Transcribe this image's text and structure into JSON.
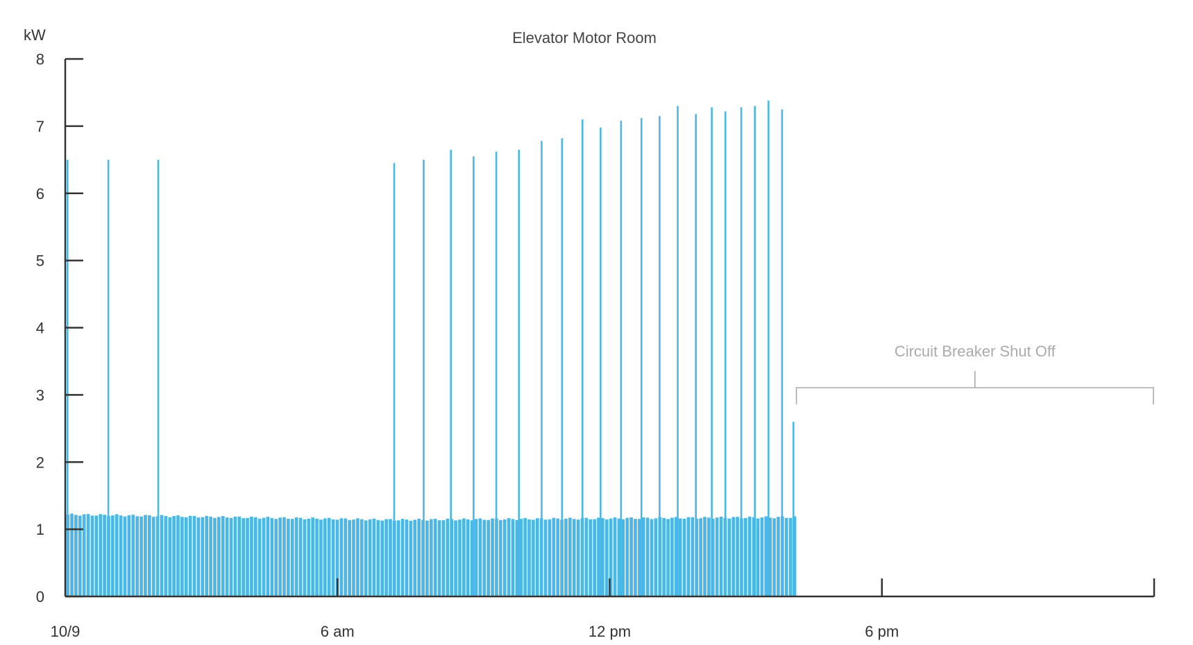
{
  "chart_data": {
    "type": "bar",
    "title": "Elevator Motor Room",
    "ylabel": "kW",
    "xlabel": "",
    "ylim": [
      0,
      8
    ],
    "yticks": [
      0,
      1,
      2,
      3,
      4,
      5,
      6,
      7,
      8
    ],
    "xlim_hours": [
      0,
      24
    ],
    "xticks": [
      {
        "hour": 0,
        "label": "10/9"
      },
      {
        "hour": 6,
        "label": "6 am"
      },
      {
        "hour": 12,
        "label": "12 pm"
      },
      {
        "hour": 18,
        "label": "6 pm"
      },
      {
        "hour": 24,
        "label": ""
      }
    ],
    "data_end_hour": 16.1,
    "baseline_start_kw": 1.22,
    "baseline_mid_kw": 1.14,
    "baseline_end_kw": 1.18,
    "spikes": [
      {
        "hour": 0.05,
        "kw": 6.5
      },
      {
        "hour": 0.95,
        "kw": 6.5
      },
      {
        "hour": 2.05,
        "kw": 6.5
      },
      {
        "hour": 7.25,
        "kw": 6.45
      },
      {
        "hour": 7.9,
        "kw": 6.5
      },
      {
        "hour": 8.5,
        "kw": 6.65
      },
      {
        "hour": 9.0,
        "kw": 6.55
      },
      {
        "hour": 9.5,
        "kw": 6.62
      },
      {
        "hour": 10.0,
        "kw": 6.65
      },
      {
        "hour": 10.5,
        "kw": 6.78
      },
      {
        "hour": 10.95,
        "kw": 6.82
      },
      {
        "hour": 11.4,
        "kw": 7.1
      },
      {
        "hour": 11.8,
        "kw": 6.98
      },
      {
        "hour": 12.25,
        "kw": 7.08
      },
      {
        "hour": 12.7,
        "kw": 7.12
      },
      {
        "hour": 13.1,
        "kw": 7.15
      },
      {
        "hour": 13.5,
        "kw": 7.3
      },
      {
        "hour": 13.9,
        "kw": 7.18
      },
      {
        "hour": 14.25,
        "kw": 7.28
      },
      {
        "hour": 14.55,
        "kw": 7.22
      },
      {
        "hour": 14.9,
        "kw": 7.28
      },
      {
        "hour": 15.2,
        "kw": 7.3
      },
      {
        "hour": 15.5,
        "kw": 7.38
      },
      {
        "hour": 15.8,
        "kw": 7.25
      },
      {
        "hour": 16.05,
        "kw": 2.6
      }
    ],
    "bar_color": "#4ab8e6",
    "annotation": {
      "text": "Circuit Breaker Shut Off",
      "from_hour": 16.1,
      "to_hour": 24,
      "y_kw": 3.2
    }
  }
}
